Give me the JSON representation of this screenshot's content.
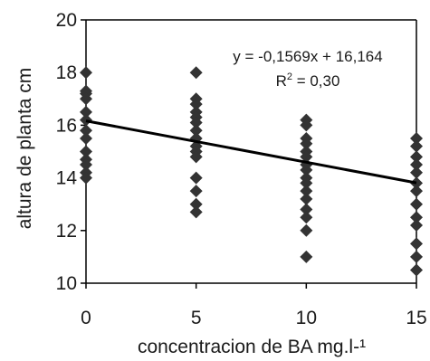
{
  "chart_data": {
    "type": "scatter",
    "xlabel": "concentracion de BA mg.l-¹",
    "ylabel": "altura de planta cm",
    "xlim": [
      0,
      15
    ],
    "ylim": [
      10,
      20
    ],
    "xticks": [
      "0",
      "5",
      "10",
      "15"
    ],
    "yticks": [
      "10",
      "12",
      "14",
      "16",
      "18",
      "20"
    ],
    "grid": false,
    "legend": "none",
    "marker_color": "#333333",
    "trendline_color": "#000000",
    "points": [
      [
        0,
        18.0
      ],
      [
        0,
        17.3
      ],
      [
        0,
        17.2
      ],
      [
        0,
        17.0
      ],
      [
        0,
        16.5
      ],
      [
        0,
        16.2
      ],
      [
        0,
        15.8
      ],
      [
        0,
        15.5
      ],
      [
        0,
        15.0
      ],
      [
        0,
        14.7
      ],
      [
        0,
        14.5
      ],
      [
        0,
        14.2
      ],
      [
        0,
        14.0
      ],
      [
        5,
        18.0
      ],
      [
        5,
        17.0
      ],
      [
        5,
        16.8
      ],
      [
        5,
        16.5
      ],
      [
        5,
        16.3
      ],
      [
        5,
        16.1
      ],
      [
        5,
        15.8
      ],
      [
        5,
        15.5
      ],
      [
        5,
        15.2
      ],
      [
        5,
        15.0
      ],
      [
        5,
        14.8
      ],
      [
        5,
        14.0
      ],
      [
        5,
        13.5
      ],
      [
        5,
        13.0
      ],
      [
        5,
        12.7
      ],
      [
        10,
        16.2
      ],
      [
        10,
        16.0
      ],
      [
        10,
        15.5
      ],
      [
        10,
        15.3
      ],
      [
        10,
        15.0
      ],
      [
        10,
        14.8
      ],
      [
        10,
        14.5
      ],
      [
        10,
        14.3
      ],
      [
        10,
        14.0
      ],
      [
        10,
        13.8
      ],
      [
        10,
        13.5
      ],
      [
        10,
        13.2
      ],
      [
        10,
        12.8
      ],
      [
        10,
        12.5
      ],
      [
        10,
        12.0
      ],
      [
        10,
        11.0
      ],
      [
        15,
        15.5
      ],
      [
        15,
        15.2
      ],
      [
        15,
        14.8
      ],
      [
        15,
        14.5
      ],
      [
        15,
        14.2
      ],
      [
        15,
        13.8
      ],
      [
        15,
        13.5
      ],
      [
        15,
        13.0
      ],
      [
        15,
        12.5
      ],
      [
        15,
        12.2
      ],
      [
        15,
        11.5
      ],
      [
        15,
        11.0
      ],
      [
        15,
        10.5
      ]
    ],
    "trendline": {
      "slope": -0.1569,
      "intercept": 16.164
    },
    "annotations": {
      "equation": "y = -0,1569x + 16,164",
      "r2_prefix": "R",
      "r2_sup": "2",
      "r2_value": " = 0,30"
    }
  }
}
